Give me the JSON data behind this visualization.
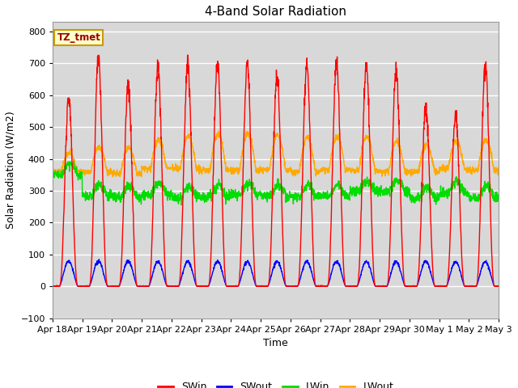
{
  "title": "4-Band Solar Radiation",
  "xlabel": "Time",
  "ylabel": "Solar Radiation (W/m2)",
  "ylim": [
    -100,
    830
  ],
  "yticks": [
    -100,
    0,
    100,
    200,
    300,
    400,
    500,
    600,
    700,
    800
  ],
  "legend_label": "TZ_tmet",
  "series_colors": {
    "SWin": "#ff0000",
    "SWout": "#0000ff",
    "LWin": "#00dd00",
    "LWout": "#ffaa00"
  },
  "background_color": "#ffffff",
  "plot_bg_color": "#d8d8d8",
  "grid_color": "#c0c0c0",
  "n_days": 15,
  "x_tick_labels": [
    "Apr 18",
    "Apr 19",
    "Apr 20",
    "Apr 21",
    "Apr 22",
    "Apr 23",
    "Apr 24",
    "Apr 25",
    "Apr 26",
    "Apr 27",
    "Apr 28",
    "Apr 29",
    "Apr 30",
    "May 1",
    "May 2",
    "May 3"
  ],
  "title_fontsize": 11,
  "label_fontsize": 9,
  "tick_fontsize": 8,
  "linewidth": 1.0
}
